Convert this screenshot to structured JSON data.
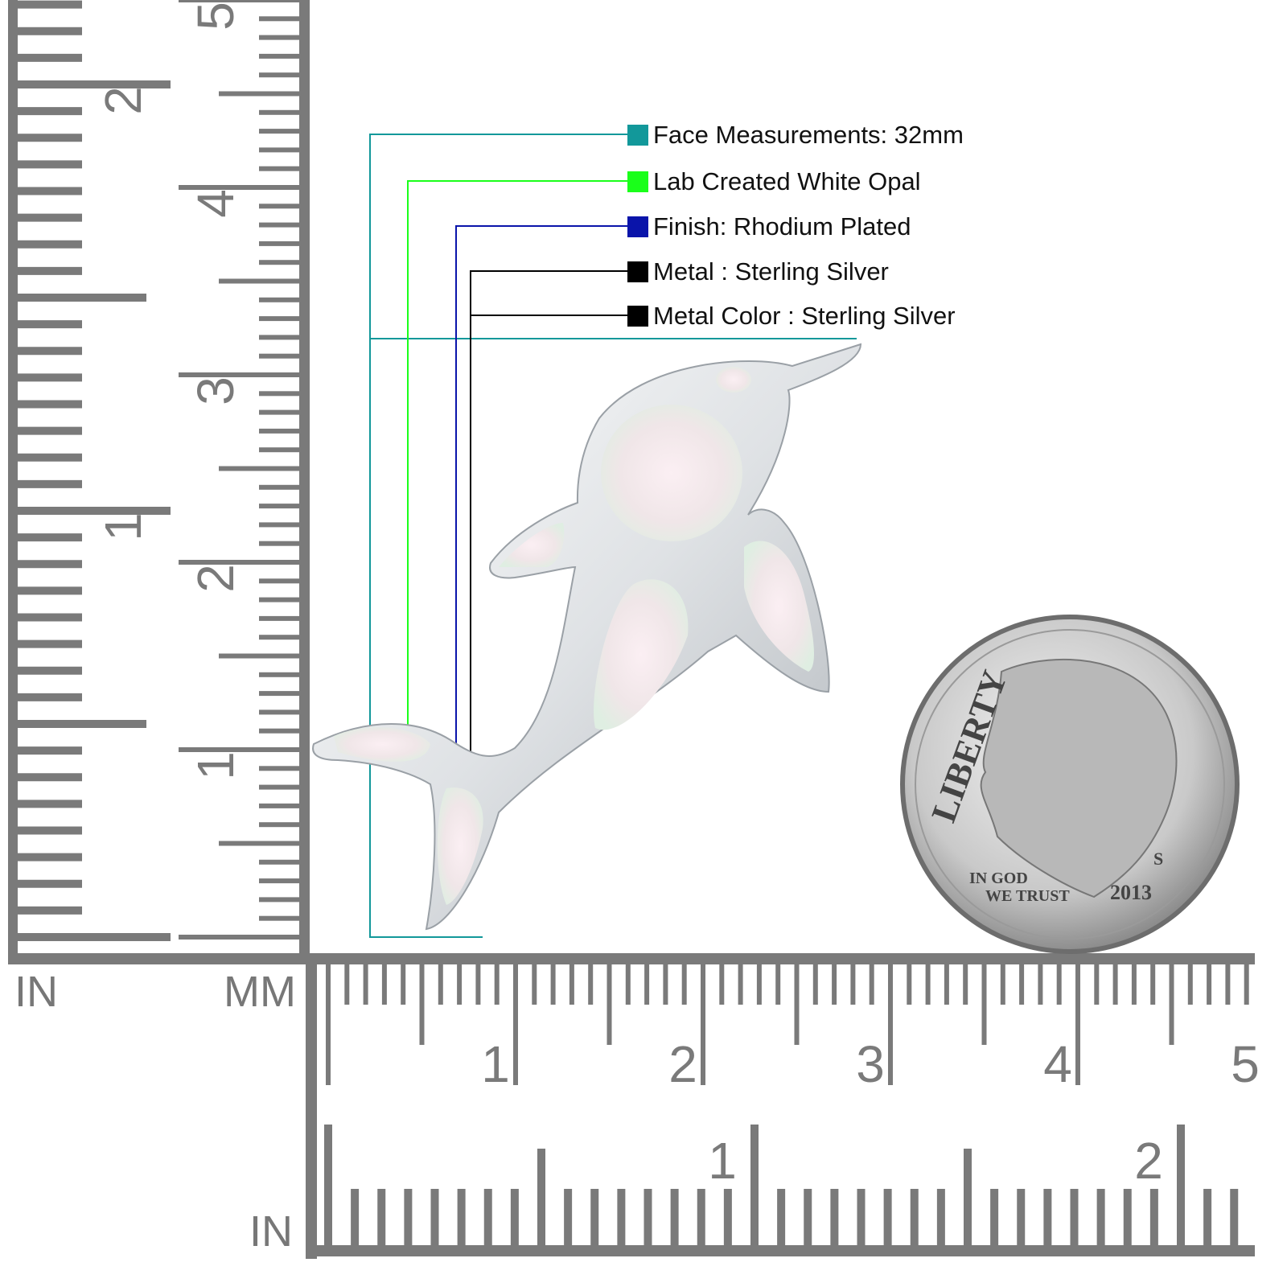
{
  "legend": [
    {
      "label": "Face Measurements: 32mm",
      "color": "#12989a"
    },
    {
      "label": "Lab Created White Opal",
      "color": "#1aff1a"
    },
    {
      "label": "Finish: Rhodium Plated",
      "color": "#0a14aa"
    },
    {
      "label": "Metal : Sterling Silver",
      "color": "#000000"
    },
    {
      "label": "Metal Color : Sterling Silver",
      "color": "#000000"
    }
  ],
  "rulers": {
    "left_inch_label": "IN",
    "left_mm_label": "MM",
    "bottom_inch_label": "IN",
    "left_inch_numbers": [
      "1",
      "2"
    ],
    "left_cm_numbers": [
      "1",
      "2",
      "3",
      "4",
      "5"
    ],
    "bottom_cm_numbers": [
      "1",
      "2",
      "3",
      "4",
      "5"
    ],
    "bottom_inch_numbers": [
      "1",
      "2"
    ],
    "color": "#7a7a7a"
  },
  "coin": {
    "motto": "LIBERTY",
    "motto2": "IN GOD",
    "motto3": "WE TRUST",
    "year": "2013",
    "mint": "S"
  },
  "product": {
    "name": "dolphin pendant",
    "metal_color": "#e6e8ea"
  }
}
